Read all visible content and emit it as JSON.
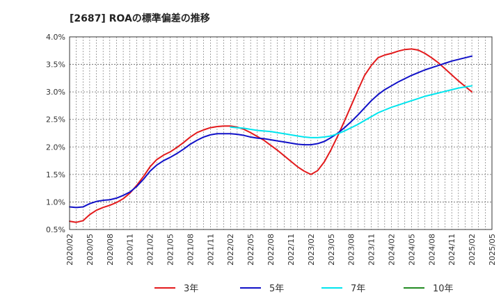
{
  "chart_data": {
    "type": "line",
    "title": "[2687]  ROAの標準偏差の推移",
    "xlabel": "",
    "ylabel": "",
    "ylim": [
      0.5,
      4.0
    ],
    "yticks": [
      "0.5%",
      "1.0%",
      "1.5%",
      "2.0%",
      "2.5%",
      "3.0%",
      "3.5%",
      "4.0%"
    ],
    "xticks": [
      "2020/02",
      "2020/05",
      "2020/08",
      "2020/11",
      "2021/02",
      "2021/05",
      "2021/08",
      "2021/11",
      "2022/02",
      "2022/05",
      "2022/08",
      "2022/11",
      "2023/02",
      "2023/05",
      "2023/08",
      "2023/11",
      "2024/02",
      "2024/05",
      "2024/08",
      "2024/11",
      "2025/02",
      "2025/05"
    ],
    "grid": true,
    "legend_position": "bottom",
    "series": [
      {
        "name": "3年",
        "color": "#e31a1c",
        "x": [
          "2020/02",
          "2020/03",
          "2020/04",
          "2020/05",
          "2020/06",
          "2020/07",
          "2020/08",
          "2020/09",
          "2020/10",
          "2020/11",
          "2020/12",
          "2021/01",
          "2021/02",
          "2021/03",
          "2021/04",
          "2021/05",
          "2021/06",
          "2021/07",
          "2021/08",
          "2021/09",
          "2021/10",
          "2021/11",
          "2021/12",
          "2022/01",
          "2022/02",
          "2022/03",
          "2022/04",
          "2022/05",
          "2022/06",
          "2022/07",
          "2022/08",
          "2022/09",
          "2022/10",
          "2022/11",
          "2022/12",
          "2023/01",
          "2023/02",
          "2023/03",
          "2023/04",
          "2023/05",
          "2023/06",
          "2023/07",
          "2023/08",
          "2023/09",
          "2023/10",
          "2023/11",
          "2023/12",
          "2024/01",
          "2024/02",
          "2024/03",
          "2024/04",
          "2024/05",
          "2024/06",
          "2024/07",
          "2024/08",
          "2024/09",
          "2024/10",
          "2024/11",
          "2024/12",
          "2025/01",
          "2025/02"
        ],
        "values": [
          0.65,
          0.63,
          0.66,
          0.77,
          0.85,
          0.9,
          0.94,
          0.99,
          1.06,
          1.16,
          1.3,
          1.46,
          1.64,
          1.77,
          1.85,
          1.91,
          1.99,
          2.08,
          2.18,
          2.26,
          2.31,
          2.35,
          2.37,
          2.38,
          2.38,
          2.36,
          2.32,
          2.26,
          2.19,
          2.12,
          2.03,
          1.94,
          1.84,
          1.74,
          1.64,
          1.56,
          1.5,
          1.57,
          1.73,
          1.95,
          2.2,
          2.47,
          2.75,
          3.03,
          3.3,
          3.48,
          3.62,
          3.67,
          3.7,
          3.74,
          3.77,
          3.78,
          3.76,
          3.7,
          3.62,
          3.53,
          3.42,
          3.31,
          3.2,
          3.1,
          3.0
        ]
      },
      {
        "name": "5年",
        "color": "#1010c8",
        "x": [
          "2020/02",
          "2020/03",
          "2020/04",
          "2020/05",
          "2020/06",
          "2020/07",
          "2020/08",
          "2020/09",
          "2020/10",
          "2020/11",
          "2020/12",
          "2021/01",
          "2021/02",
          "2021/03",
          "2021/04",
          "2021/05",
          "2021/06",
          "2021/07",
          "2021/08",
          "2021/09",
          "2021/10",
          "2021/11",
          "2021/12",
          "2022/01",
          "2022/02",
          "2022/03",
          "2022/04",
          "2022/05",
          "2022/06",
          "2022/07",
          "2022/08",
          "2022/09",
          "2022/10",
          "2022/11",
          "2022/12",
          "2023/01",
          "2023/02",
          "2023/03",
          "2023/04",
          "2023/05",
          "2023/06",
          "2023/07",
          "2023/08",
          "2023/09",
          "2023/10",
          "2023/11",
          "2023/12",
          "2024/01",
          "2024/02",
          "2024/03",
          "2024/04",
          "2024/05",
          "2024/06",
          "2024/07",
          "2024/08",
          "2024/09",
          "2024/10",
          "2024/11",
          "2024/12",
          "2025/01",
          "2025/02"
        ],
        "values": [
          0.91,
          0.9,
          0.91,
          0.97,
          1.01,
          1.03,
          1.04,
          1.07,
          1.12,
          1.18,
          1.28,
          1.41,
          1.56,
          1.67,
          1.75,
          1.81,
          1.88,
          1.96,
          2.05,
          2.12,
          2.18,
          2.22,
          2.24,
          2.24,
          2.24,
          2.23,
          2.21,
          2.18,
          2.16,
          2.15,
          2.13,
          2.11,
          2.09,
          2.07,
          2.05,
          2.04,
          2.04,
          2.06,
          2.1,
          2.17,
          2.25,
          2.35,
          2.46,
          2.58,
          2.71,
          2.84,
          2.95,
          3.04,
          3.11,
          3.18,
          3.24,
          3.3,
          3.35,
          3.4,
          3.44,
          3.48,
          3.52,
          3.56,
          3.59,
          3.62,
          3.65
        ]
      },
      {
        "name": "7年",
        "color": "#00e5ee",
        "x": [
          "2022/02",
          "2022/03",
          "2022/04",
          "2022/05",
          "2022/06",
          "2022/07",
          "2022/08",
          "2022/09",
          "2022/10",
          "2022/11",
          "2022/12",
          "2023/01",
          "2023/02",
          "2023/03",
          "2023/04",
          "2023/05",
          "2023/06",
          "2023/07",
          "2023/08",
          "2023/09",
          "2023/10",
          "2023/11",
          "2023/12",
          "2024/01",
          "2024/02",
          "2024/03",
          "2024/04",
          "2024/05",
          "2024/06",
          "2024/07",
          "2024/08",
          "2024/09",
          "2024/10",
          "2024/11",
          "2024/12",
          "2025/01",
          "2025/02"
        ],
        "values": [
          2.36,
          2.35,
          2.34,
          2.32,
          2.3,
          2.29,
          2.28,
          2.26,
          2.24,
          2.22,
          2.2,
          2.18,
          2.17,
          2.17,
          2.18,
          2.2,
          2.24,
          2.29,
          2.35,
          2.41,
          2.48,
          2.55,
          2.62,
          2.67,
          2.72,
          2.76,
          2.8,
          2.84,
          2.88,
          2.92,
          2.95,
          2.98,
          3.01,
          3.04,
          3.07,
          3.09,
          3.11
        ]
      },
      {
        "name": "10年",
        "color": "#228b22",
        "x": [],
        "values": []
      }
    ]
  }
}
